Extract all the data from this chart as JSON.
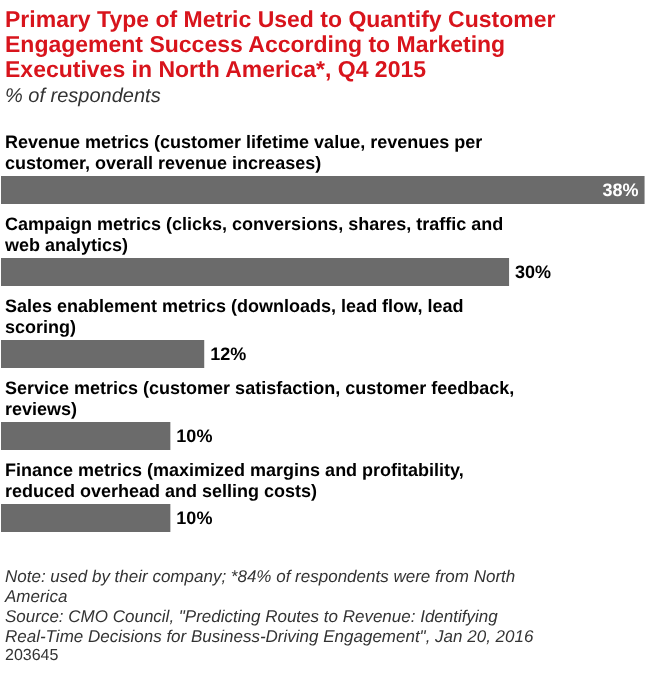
{
  "chart_data": {
    "type": "bar",
    "orientation": "horizontal",
    "title": "Primary Type of Metric Used to Quantify Customer Engagement Success According to Marketing Executives in North America*, Q4 2015",
    "subtitle": "% of respondents",
    "categories": [
      "Revenue metrics (customer lifetime value, revenues per customer, overall revenue increases)",
      "Campaign metrics (clicks, conversions, shares, traffic and web analytics)",
      "Sales enablement metrics (downloads, lead flow, lead scoring)",
      "Service metrics (customer satisfaction, customer feedback, reviews)",
      "Finance metrics (maximized margins and profitability, reduced overhead and selling costs)"
    ],
    "values": [
      38,
      30,
      12,
      10,
      10
    ],
    "value_labels": [
      "38%",
      "30%",
      "12%",
      "10%",
      "10%"
    ],
    "color": "#6b6b6b",
    "annotations": [
      "Note: used by their company; *84% of respondents were from North America",
      "Source: CMO Council, \"Predicting Routes to Revenue: Identifying Real-Time Decisions for Business-Driving Engagement\", Jan 20, 2016",
      "203645"
    ]
  }
}
